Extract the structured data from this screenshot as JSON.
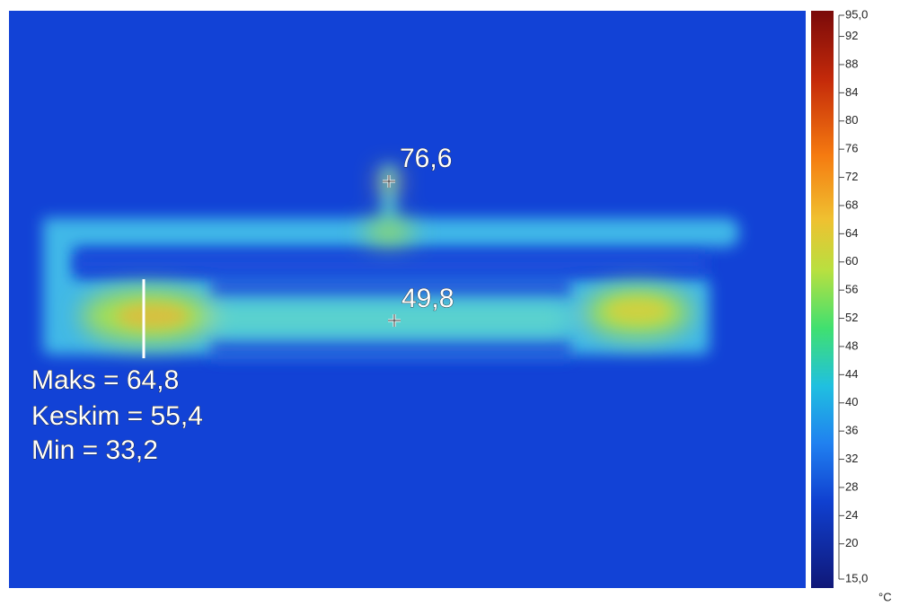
{
  "spots": [
    {
      "label": "76,6"
    },
    {
      "label": "49,8"
    }
  ],
  "line_stats": [
    "Maks = 64,8",
    "Keskim = 55,4",
    "Min = 33,2"
  ],
  "scale": {
    "max": {
      "value": 95,
      "label": "95,0"
    },
    "min": {
      "value": 15,
      "label": "15,0"
    },
    "ticks": [
      92,
      88,
      84,
      80,
      76,
      72,
      68,
      64,
      60,
      56,
      52,
      48,
      44,
      40,
      36,
      32,
      28,
      24,
      20
    ],
    "unit": "°C"
  }
}
